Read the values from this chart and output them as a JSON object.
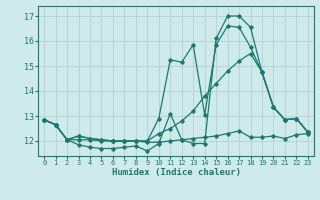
{
  "xlabel": "Humidex (Indice chaleur)",
  "background_color": "#ceeaea",
  "grid_color": "#b8d4d4",
  "line_color": "#1a7a6e",
  "spine_color": "#1a7a6e",
  "xlim": [
    -0.5,
    23.5
  ],
  "ylim": [
    11.4,
    17.4
  ],
  "yticks": [
    12,
    13,
    14,
    15,
    16,
    17
  ],
  "xticks": [
    0,
    1,
    2,
    3,
    4,
    5,
    6,
    7,
    8,
    9,
    10,
    11,
    12,
    13,
    14,
    15,
    16,
    17,
    18,
    19,
    20,
    21,
    22,
    23
  ],
  "lines": [
    {
      "x": [
        0,
        1,
        2,
        3,
        4,
        5,
        6,
        7,
        8,
        9,
        10,
        11,
        12,
        13,
        14,
        15,
        16,
        17,
        18,
        19,
        20,
        21,
        22,
        23
      ],
      "y": [
        12.85,
        12.65,
        12.05,
        11.85,
        11.75,
        11.7,
        11.7,
        11.75,
        11.8,
        11.6,
        11.9,
        13.1,
        12.05,
        11.9,
        11.9,
        16.1,
        17.0,
        17.0,
        16.55,
        14.75,
        13.35,
        12.85,
        12.9,
        12.35
      ]
    },
    {
      "x": [
        0,
        1,
        2,
        3,
        4,
        5,
        6,
        7,
        8,
        9,
        10,
        11,
        12,
        13,
        14,
        15,
        16,
        17,
        18,
        19,
        20,
        21,
        22,
        23
      ],
      "y": [
        12.85,
        12.65,
        12.05,
        12.05,
        12.05,
        12.0,
        12.0,
        12.0,
        12.0,
        11.95,
        11.95,
        12.0,
        12.05,
        12.1,
        12.15,
        12.2,
        12.3,
        12.4,
        12.15,
        12.15,
        12.2,
        12.1,
        12.25,
        12.3
      ]
    },
    {
      "x": [
        0,
        1,
        2,
        3,
        4,
        5,
        6,
        7,
        8,
        9,
        10,
        11,
        12,
        13,
        14,
        15,
        16,
        17,
        18,
        19,
        20,
        21,
        22,
        23
      ],
      "y": [
        12.85,
        12.65,
        12.05,
        12.2,
        12.1,
        12.05,
        12.0,
        12.0,
        12.0,
        12.0,
        12.3,
        12.5,
        12.8,
        13.2,
        13.8,
        14.3,
        14.8,
        15.2,
        15.5,
        14.75,
        13.35,
        12.85,
        12.9,
        12.35
      ]
    },
    {
      "x": [
        0,
        1,
        2,
        3,
        4,
        5,
        6,
        7,
        8,
        9,
        10,
        11,
        12,
        13,
        14,
        15,
        16,
        17,
        18,
        19,
        20,
        21,
        22,
        23
      ],
      "y": [
        12.85,
        12.65,
        12.05,
        12.2,
        12.1,
        12.05,
        12.0,
        12.0,
        12.0,
        12.0,
        12.9,
        15.25,
        15.15,
        15.85,
        13.05,
        15.85,
        16.6,
        16.55,
        15.75,
        14.75,
        13.35,
        12.85,
        12.9,
        12.35
      ]
    }
  ]
}
